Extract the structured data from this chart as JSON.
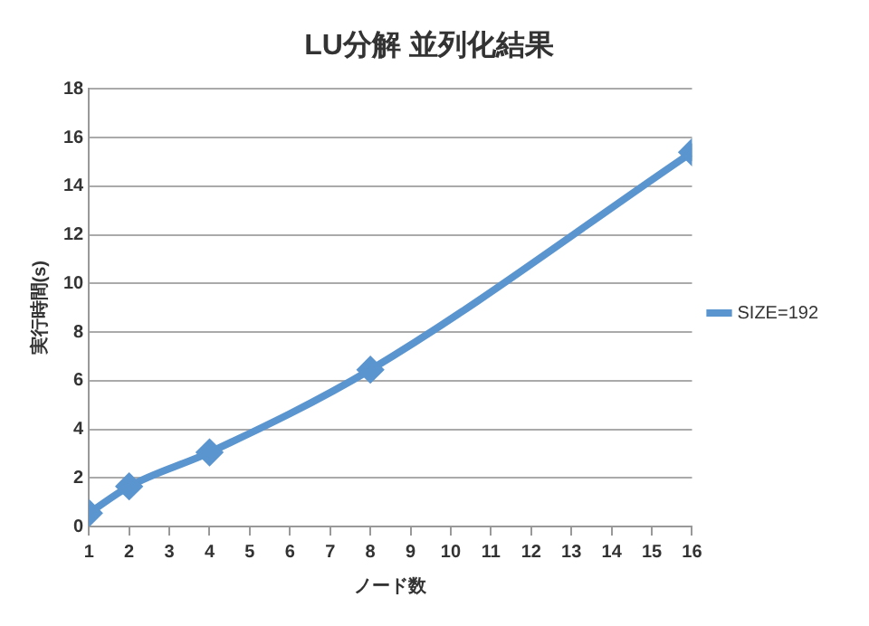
{
  "chart_data": {
    "type": "line",
    "title": "LU分解 並列化結果",
    "xlabel": "ノード数",
    "ylabel": "実行時間(s)",
    "x": [
      1,
      2,
      4,
      8,
      16
    ],
    "series": [
      {
        "name": "SIZE=192",
        "color": "#5b95cf",
        "values": [
          0.55,
          1.65,
          3.05,
          6.45,
          15.4
        ]
      }
    ],
    "xlim": [
      1,
      16
    ],
    "xticks": [
      1,
      2,
      3,
      4,
      5,
      6,
      7,
      8,
      9,
      10,
      11,
      12,
      13,
      14,
      15,
      16
    ],
    "ylim": [
      0,
      18
    ],
    "yticks": [
      0,
      2,
      4,
      6,
      8,
      10,
      12,
      14,
      16,
      18
    ],
    "grid": "y",
    "legend": "right",
    "marker": "diamond",
    "line_style": "solid"
  }
}
